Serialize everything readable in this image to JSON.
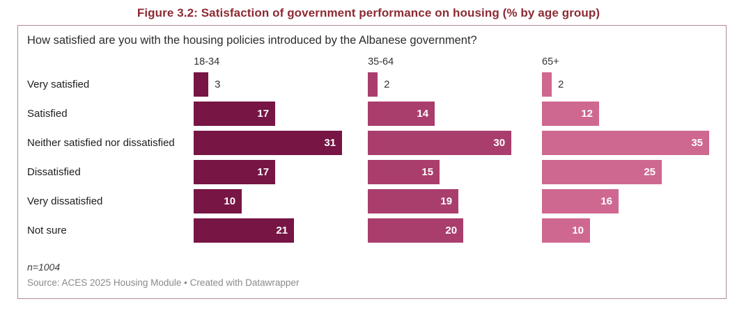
{
  "figure": {
    "title": "Figure 3.2: Satisfaction of government performance on housing (% by age group)"
  },
  "panel": {
    "question": "How satisfied are you with the housing policies introduced by the Albanese government?",
    "footnote": "n=1004",
    "source": "Source: ACES 2025 Housing Module • Created with Datawrapper"
  },
  "colors": {
    "title": "#8c2a33",
    "panel_border": "#b18b92",
    "series_18_34": "#771545",
    "series_35_64": "#a93e6c",
    "series_65_plus": "#cf6890",
    "value_label_inside": "#ffffff",
    "value_label_outside": "#333333",
    "source_text": "#8a8a8a"
  },
  "chart_data": {
    "type": "bar",
    "orientation": "horizontal",
    "title": "Figure 3.2: Satisfaction of government performance on housing (% by age group)",
    "subtitle": "How satisfied are you with the housing policies introduced by the Albanese government?",
    "categories": [
      "Very satisfied",
      "Satisfied",
      "Neither satisfied nor dissatisfied",
      "Dissatisfied",
      "Very dissatisfied",
      "Not sure"
    ],
    "series": [
      {
        "name": "18-34",
        "color": "#771545",
        "values": [
          3,
          17,
          31,
          17,
          10,
          21
        ]
      },
      {
        "name": "35-64",
        "color": "#a93e6c",
        "values": [
          2,
          14,
          30,
          15,
          19,
          20
        ]
      },
      {
        "name": "65+",
        "color": "#cf6890",
        "values": [
          2,
          12,
          35,
          25,
          16,
          10
        ]
      }
    ],
    "value_unit": "%",
    "xlim": [
      0,
      35
    ],
    "grid": false,
    "legend_position": "column-headers",
    "data_labels": true,
    "sample_size": "n=1004"
  }
}
